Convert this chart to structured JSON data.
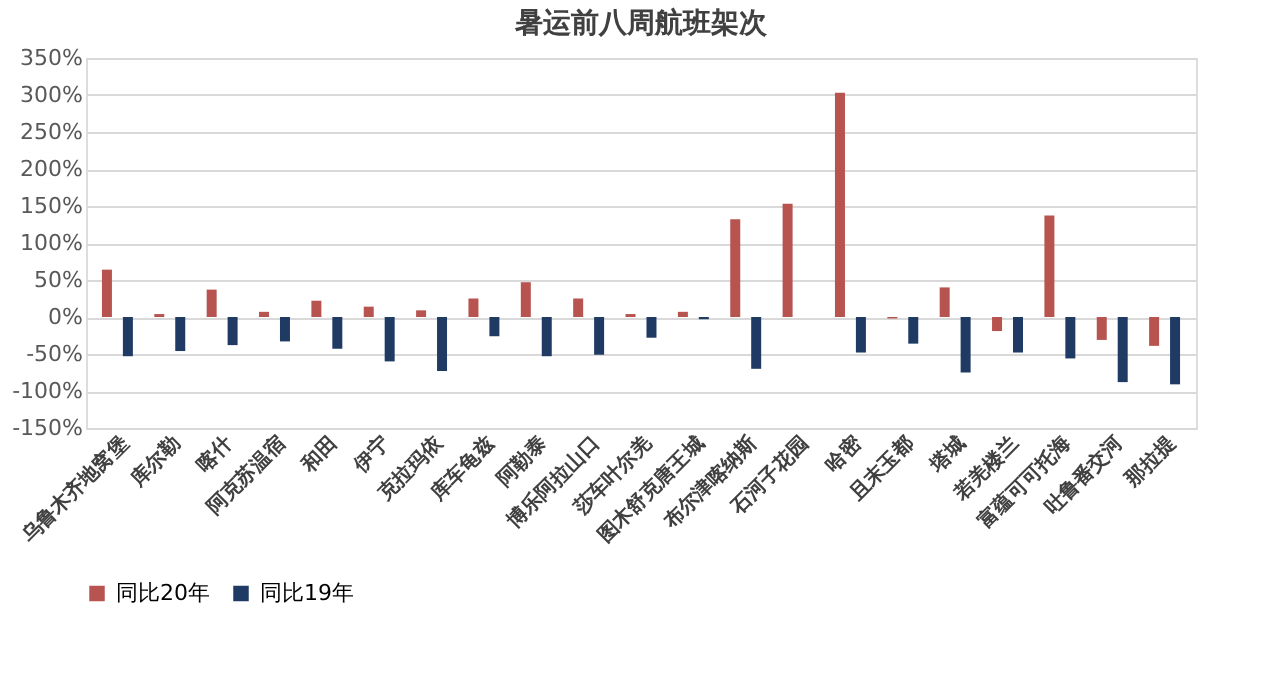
{
  "chart_data": {
    "type": "bar",
    "title": "暑运前八周航班架次",
    "categories": [
      "乌鲁木齐地窝堡",
      "库尔勒",
      "喀什",
      "阿克苏温宿",
      "和田",
      "伊宁",
      "克拉玛依",
      "库车龟兹",
      "阿勒泰",
      "博乐阿拉山口",
      "莎车叶尔羌",
      "图木舒克唐王城",
      "布尔津喀纳斯",
      "石河子花园",
      "哈密",
      "且末玉都",
      "塔城",
      "若羌楼兰",
      "富蕴可可托海",
      "吐鲁番交河",
      "那拉提"
    ],
    "series": [
      {
        "name": "同比20年",
        "color": "#b85450",
        "values": [
          64,
          4,
          37,
          7,
          22,
          14,
          9,
          25,
          47,
          25,
          4,
          7,
          132,
          153,
          303,
          -2,
          40,
          -19,
          137,
          -31,
          -39
        ]
      },
      {
        "name": "同比19年",
        "color": "#1f3b63",
        "values": [
          -53,
          -46,
          -38,
          -33,
          -43,
          -60,
          -73,
          -26,
          -53,
          -51,
          -28,
          -3,
          -70,
          null,
          -48,
          -36,
          -75,
          -48,
          -56,
          -88,
          -91
        ]
      }
    ],
    "ylim": [
      -150,
      350
    ],
    "yticks": [
      {
        "value": -150,
        "label": "-150%"
      },
      {
        "value": -100,
        "label": "-100%"
      },
      {
        "value": -50,
        "label": "-50%"
      },
      {
        "value": 0,
        "label": "0%"
      },
      {
        "value": 50,
        "label": "50%"
      },
      {
        "value": 100,
        "label": "100%"
      },
      {
        "value": 150,
        "label": "150%"
      },
      {
        "value": 200,
        "label": "200%"
      },
      {
        "value": 250,
        "label": "250%"
      },
      {
        "value": 300,
        "label": "300%"
      },
      {
        "value": 350,
        "label": "350%"
      }
    ],
    "grid": "y",
    "legend": "bottom"
  }
}
